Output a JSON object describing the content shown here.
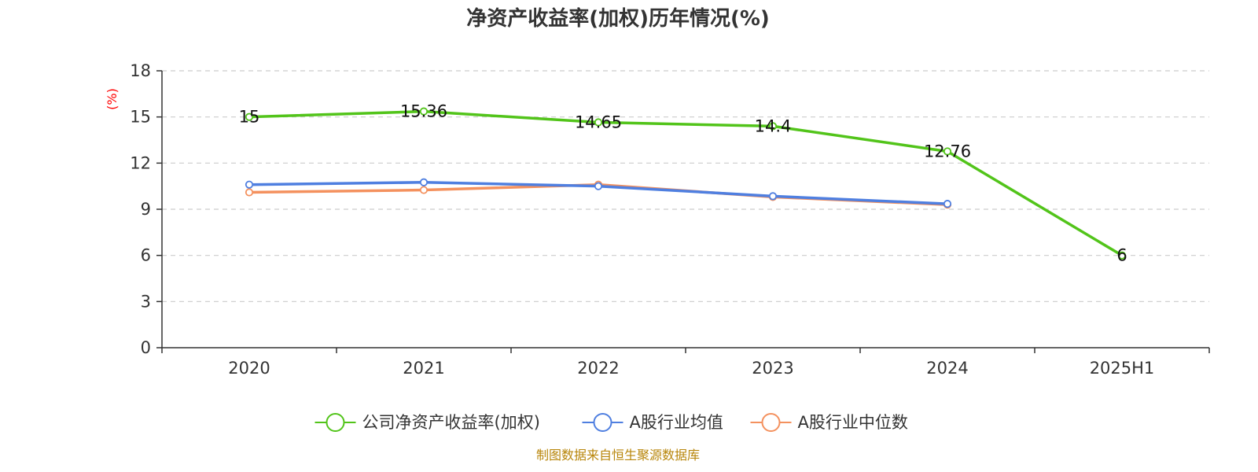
{
  "chart_data": {
    "type": "line",
    "title": "净资产收益率(加权)历年情况(%)",
    "ylabel": "(%)",
    "xlabel": "",
    "categories": [
      "2020",
      "2021",
      "2022",
      "2023",
      "2024",
      "2025H1"
    ],
    "ylim": [
      0,
      18
    ],
    "yticks": [
      0,
      3,
      6,
      9,
      12,
      15,
      18
    ],
    "grid": true,
    "legend_position": "bottom",
    "series": [
      {
        "name": "公司净资产收益率(加权)",
        "color": "#52c41a",
        "values": [
          15,
          15.36,
          14.65,
          14.4,
          12.76,
          6
        ],
        "show_labels": true
      },
      {
        "name": "A股行业均值",
        "color": "#4f7fe0",
        "values": [
          10.6,
          10.75,
          10.5,
          9.85,
          9.35,
          null
        ],
        "show_labels": false
      },
      {
        "name": "A股行业中位数",
        "color": "#f4915e",
        "values": [
          10.1,
          10.25,
          10.6,
          9.8,
          9.3,
          null
        ],
        "show_labels": false
      }
    ],
    "source": "制图数据来自恒生聚源数据库"
  }
}
